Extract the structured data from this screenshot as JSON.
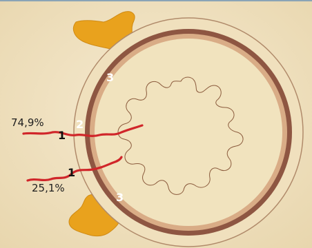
{
  "colors": {
    "background": "#f1e3be",
    "fat": "#e9a21d",
    "outer_ring": "#e6c29d",
    "muscle_ring": "#8e5642",
    "inner_ring": "#d9ac86",
    "lumen": "#f1e3be",
    "lumen_outline": "#8a5a3c",
    "lymph_node": "#6b3c2c",
    "path_line": "#d0262a"
  },
  "labels": {
    "upper_percent": "74,9%",
    "lower_percent": "25,1%",
    "num_1": "1",
    "num_2": "2",
    "num_3": "3"
  }
}
